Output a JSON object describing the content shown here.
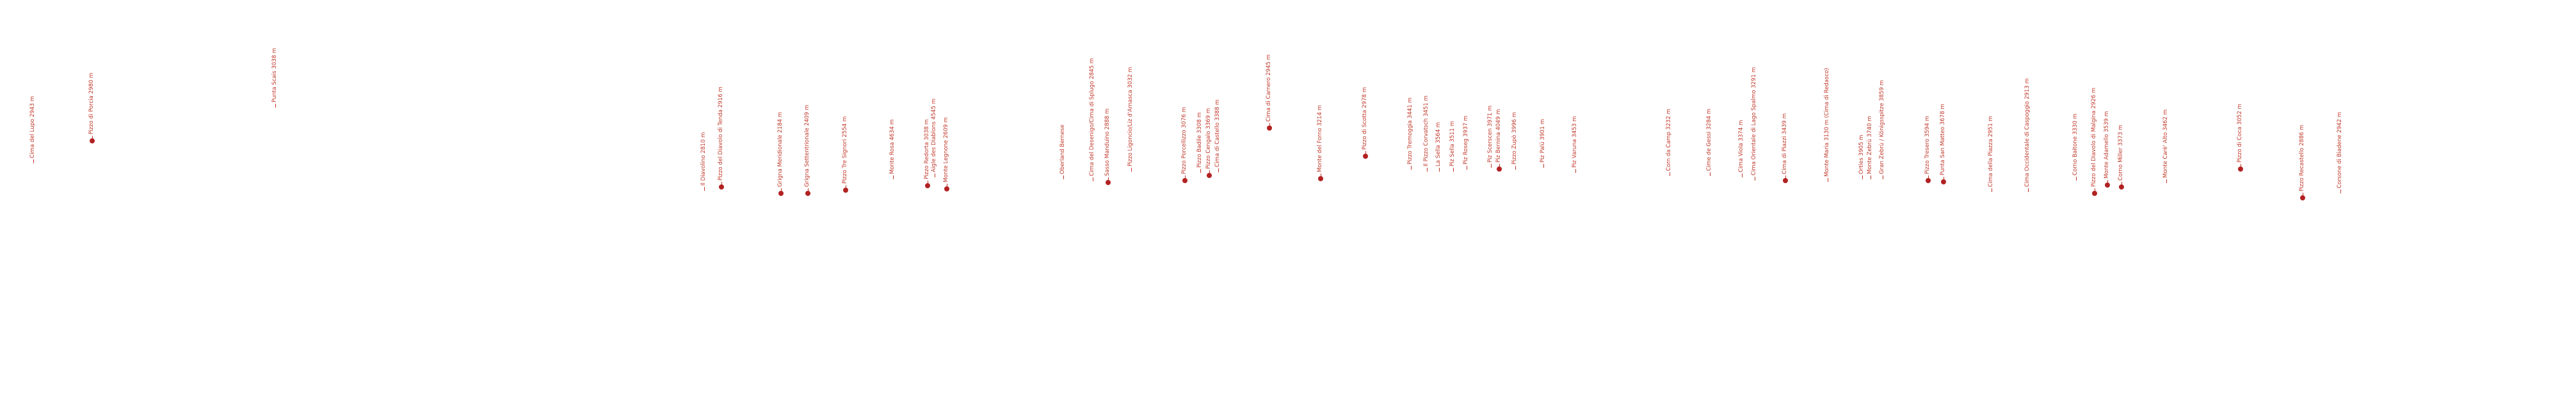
{
  "panorama": {
    "accent_color": "#c0392b",
    "marker_color": "#b22222",
    "peaks": [
      {
        "label": "Cima del Lupo 2943 m",
        "marker": false
      },
      {
        "label": "Pizzo di Porcia 2980 m",
        "marker": true
      },
      {
        "label": "Punta Scais 3038 m",
        "marker": false
      },
      {
        "label": "Il Diavolino 2810 m",
        "marker": false
      },
      {
        "label": "Pizzo del Diavolo di Tenda 2916 m",
        "marker": true
      },
      {
        "label": "Grigna Meridionale 2184 m",
        "marker": true
      },
      {
        "label": "Grigna Settentrionale 2409 m",
        "marker": true
      },
      {
        "label": "Pizzo Tre Signori 2554 m",
        "marker": true
      },
      {
        "label": "Monte Rosa 4634 m",
        "marker": false
      },
      {
        "label": "Pizzo Redorta 3038 m",
        "marker": true
      },
      {
        "label": "Aigle des Diablons 4545 m",
        "marker": false
      },
      {
        "label": "Monte Legnone 2609 m",
        "marker": true
      },
      {
        "label": "Oberland Bernese",
        "marker": false
      },
      {
        "label": "Cima del Desenigo/Cima di Splugo 2845 m",
        "marker": false
      },
      {
        "label": "Sasso Manduino 2888 m",
        "marker": true
      },
      {
        "label": "Pizzo Ligoncio/Liz d'Arnasca 3032 m",
        "marker": false
      },
      {
        "label": "Pizzo Porcellizzo 3076 m",
        "marker": true
      },
      {
        "label": "Pizzo Badile 3308 m",
        "marker": false
      },
      {
        "label": "Pizzo Cengalo 3369 m",
        "marker": true
      },
      {
        "label": "Cima di Castello 3388 m",
        "marker": false
      },
      {
        "label": "Cima di Carnero 2945 m",
        "marker": true
      },
      {
        "label": "Monte del Forno 3214 m",
        "marker": true
      },
      {
        "label": "Pizzo di Scotta 2978 m",
        "marker": true
      },
      {
        "label": "Pizzo Tremoggia 3441 m",
        "marker": false
      },
      {
        "label": "Il Pizzo Corvatsch 3451 m",
        "marker": false
      },
      {
        "label": "La Sella 3564 m",
        "marker": false
      },
      {
        "label": "Piz Sella 3511 m",
        "marker": false
      },
      {
        "label": "Piz Roseg 3937 m",
        "marker": false
      },
      {
        "label": "Piz Scerscen 3971 m",
        "marker": false
      },
      {
        "label": "Piz Bernina 4049 m",
        "marker": true
      },
      {
        "label": "Pizzo Zupò 3996 m",
        "marker": false
      },
      {
        "label": "Piz Palü 3901 m",
        "marker": false
      },
      {
        "label": "Piz Varuna 3453 m",
        "marker": false
      },
      {
        "label": "Corn da Camp 3232 m",
        "marker": false
      },
      {
        "label": "Cime de Gessi 3284 m",
        "marker": false
      },
      {
        "label": "Cima Viola 3374 m",
        "marker": false
      },
      {
        "label": "Cima Orientale di Lago Spalmo 3291 m",
        "marker": false
      },
      {
        "label": "Cima di Piazzi 3439 m",
        "marker": true
      },
      {
        "label": "Monte Maria 3130 m (Cima di Redasco)",
        "marker": false
      },
      {
        "label": "Ortles 3905 m",
        "marker": false
      },
      {
        "label": "Monte Zebrù 3740 m",
        "marker": false
      },
      {
        "label": "Gran Zebrù / Königsspitze 3859 m",
        "marker": false
      },
      {
        "label": "Pizzo Tresero 3594 m",
        "marker": true
      },
      {
        "label": "Punta San Matteo 3678 m",
        "marker": true
      },
      {
        "label": "Cima della Piazza 2951 m",
        "marker": false
      },
      {
        "label": "Cima Occidentale di Caspoggio 2913 m",
        "marker": false
      },
      {
        "label": "Corno Baitone 3330 m",
        "marker": false
      },
      {
        "label": "Pizzo del Diavolo di Malgina 2926 m",
        "marker": true
      },
      {
        "label": "Monte Adamello 3539 m",
        "marker": true
      },
      {
        "label": "Corno Miller 3373 m",
        "marker": true
      },
      {
        "label": "Monte Carè' Alto 3462 m",
        "marker": false
      },
      {
        "label": "Pizzo di Coca 3052 m",
        "marker": true
      },
      {
        "label": "Pizzo Recastello 2886 m",
        "marker": true
      },
      {
        "label": "Corsone di Biadene 2942 m",
        "marker": false
      }
    ]
  }
}
